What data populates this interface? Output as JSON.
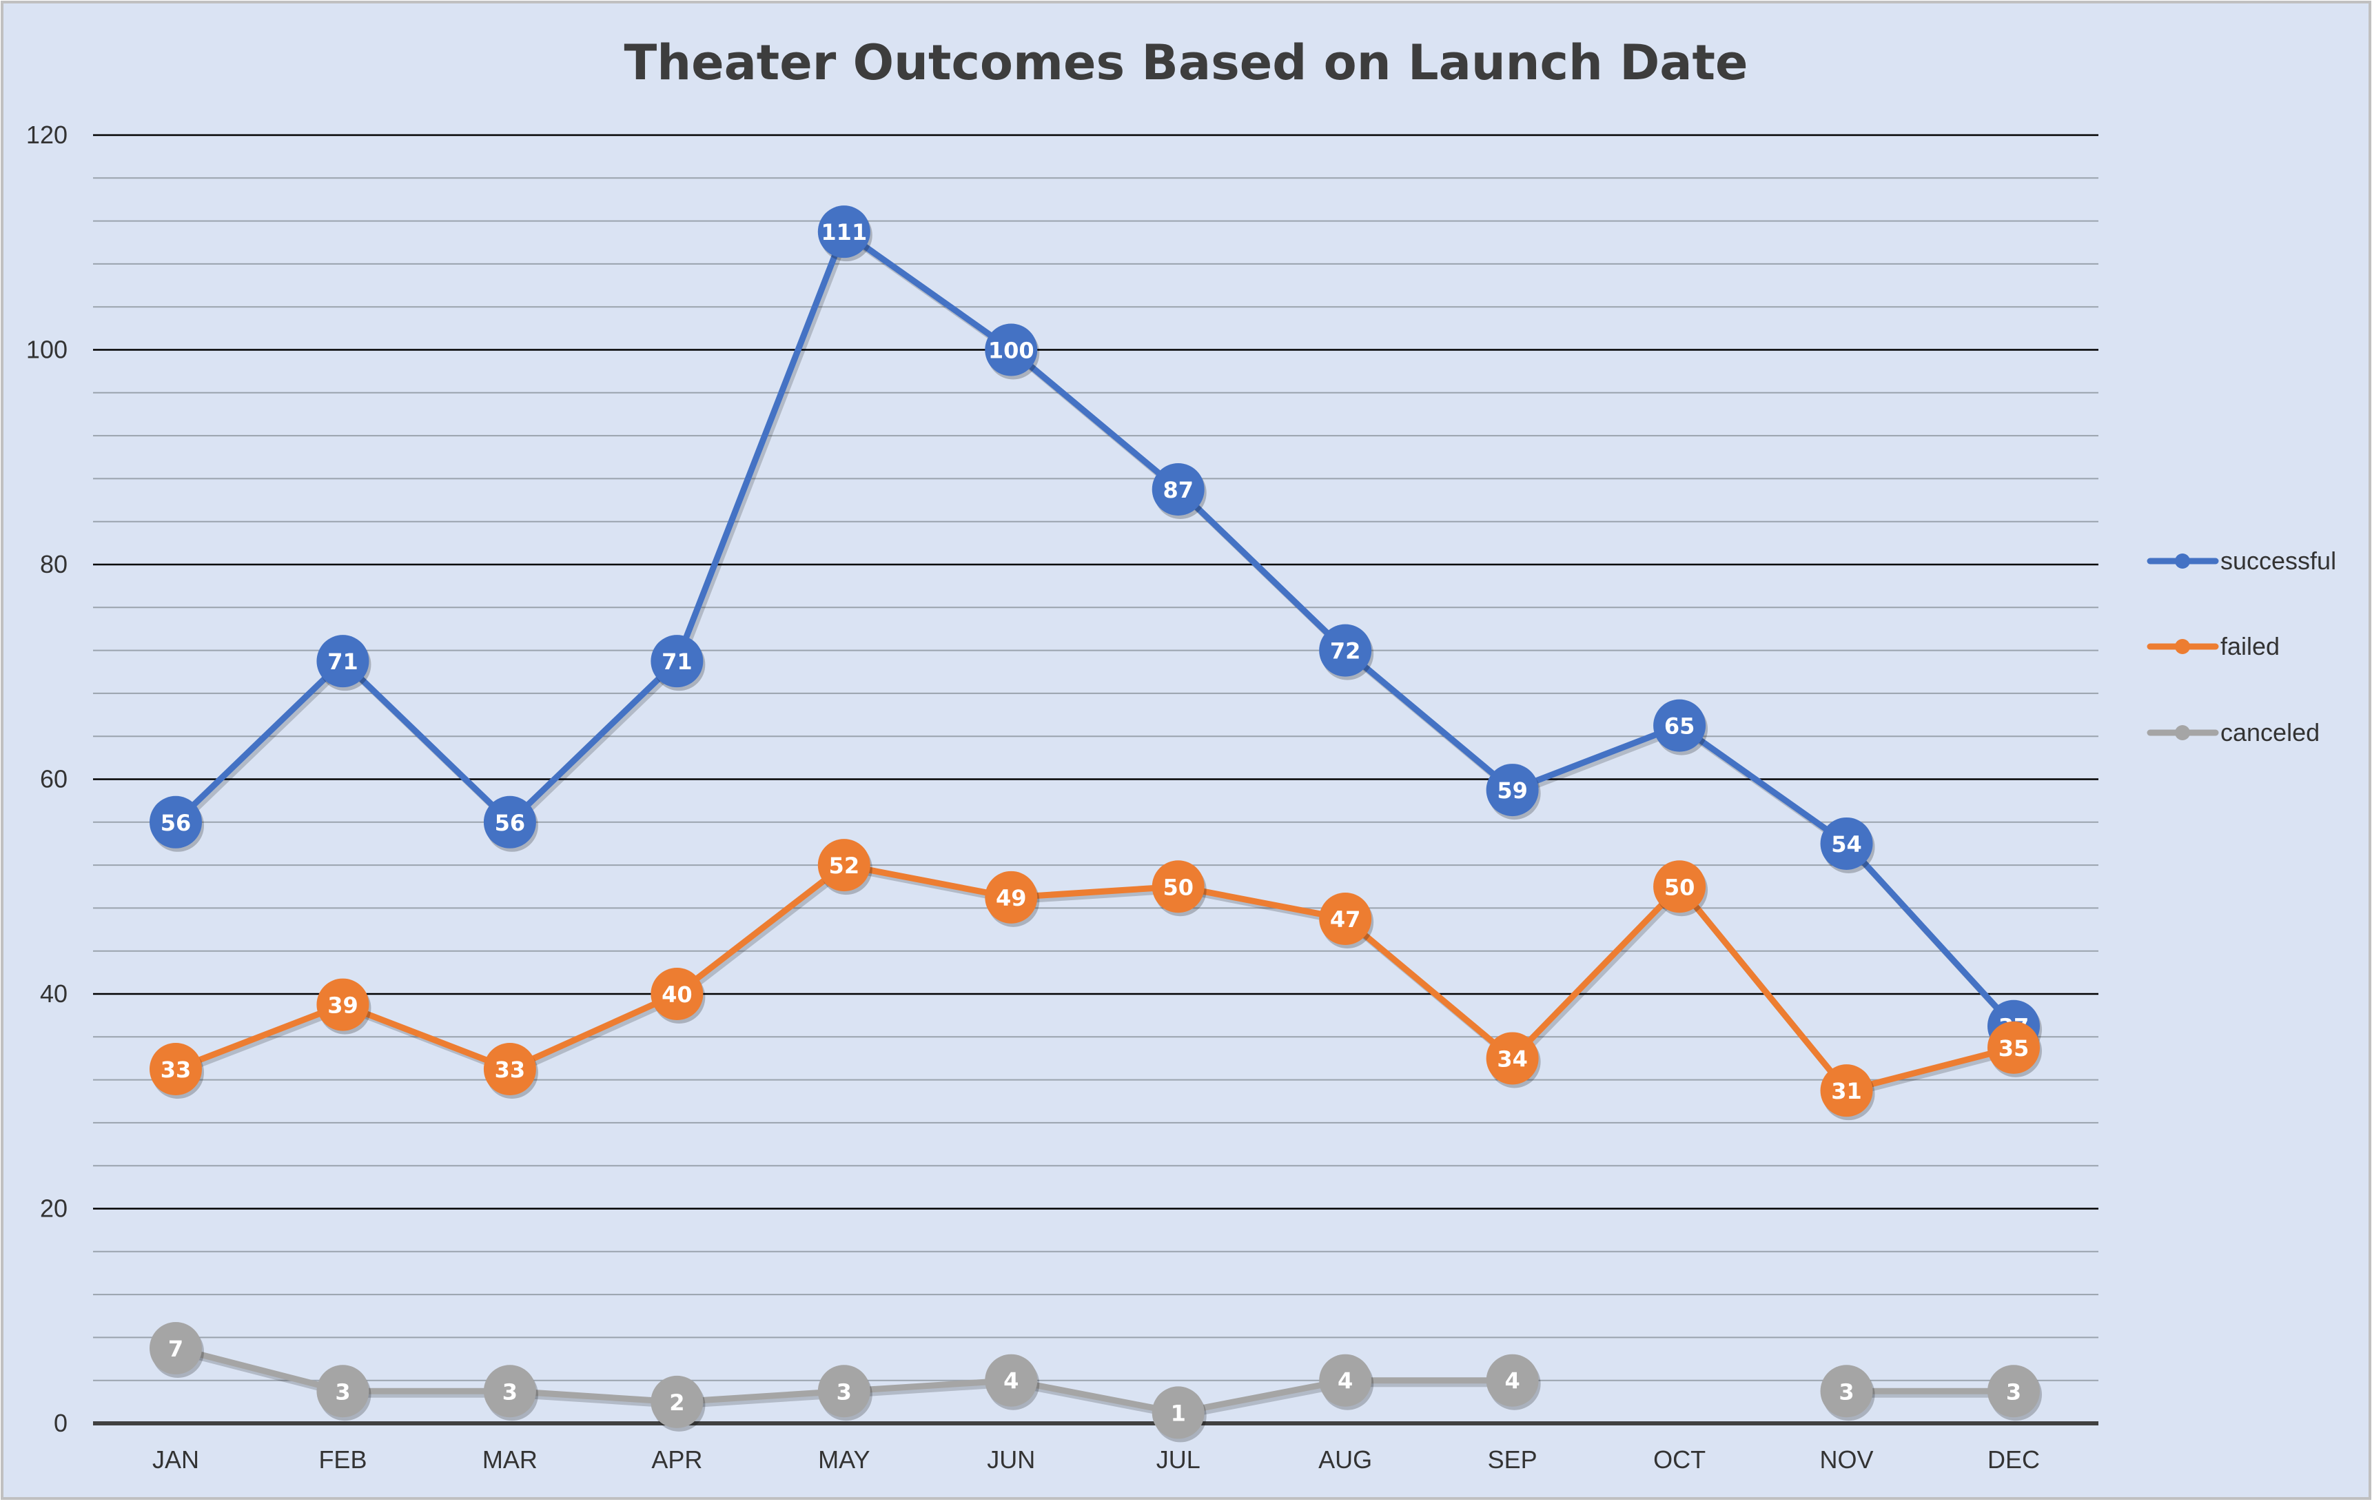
{
  "chart_data": {
    "type": "line",
    "title": "Theater Outcomes Based on Launch Date",
    "xlabel": "",
    "ylabel": "",
    "categories": [
      "JAN",
      "FEB",
      "MAR",
      "APR",
      "MAY",
      "JUN",
      "JUL",
      "AUG",
      "SEP",
      "OCT",
      "NOV",
      "DEC"
    ],
    "ylim": [
      0,
      120
    ],
    "y_ticks": [
      "0",
      "20",
      "40",
      "60",
      "80",
      "100",
      "120"
    ],
    "grid": "major and minor horizontal",
    "legend_position": "right",
    "series": [
      {
        "name": "successful",
        "color": "#4472c4",
        "values": [
          56,
          71,
          56,
          71,
          111,
          100,
          87,
          72,
          59,
          65,
          54,
          37
        ],
        "labels": [
          "56",
          "71",
          "56",
          "71",
          "111",
          "100",
          "87",
          "72",
          "59",
          "65",
          "54",
          "37"
        ]
      },
      {
        "name": "failed",
        "color": "#ed7d31",
        "values": [
          33,
          39,
          33,
          40,
          52,
          49,
          50,
          47,
          34,
          50,
          31,
          35
        ],
        "labels": [
          "33",
          "39",
          "33",
          "40",
          "52",
          "49",
          "50",
          "47",
          "34",
          "50",
          "31",
          "35"
        ]
      },
      {
        "name": "canceled",
        "color": "#a5a5a5",
        "values": [
          7,
          3,
          3,
          2,
          3,
          4,
          1,
          4,
          4,
          null,
          3,
          3
        ],
        "labels": [
          "7",
          "3",
          "3",
          "2",
          "3",
          "4",
          "1",
          "4",
          "4",
          null,
          "3",
          "3"
        ]
      }
    ]
  },
  "colors": {
    "background": "#dae3f3",
    "border": "#c0c0c0",
    "major_grid": "#000000",
    "minor_grid": "#9aa3ad",
    "axis_line": "#404040"
  }
}
